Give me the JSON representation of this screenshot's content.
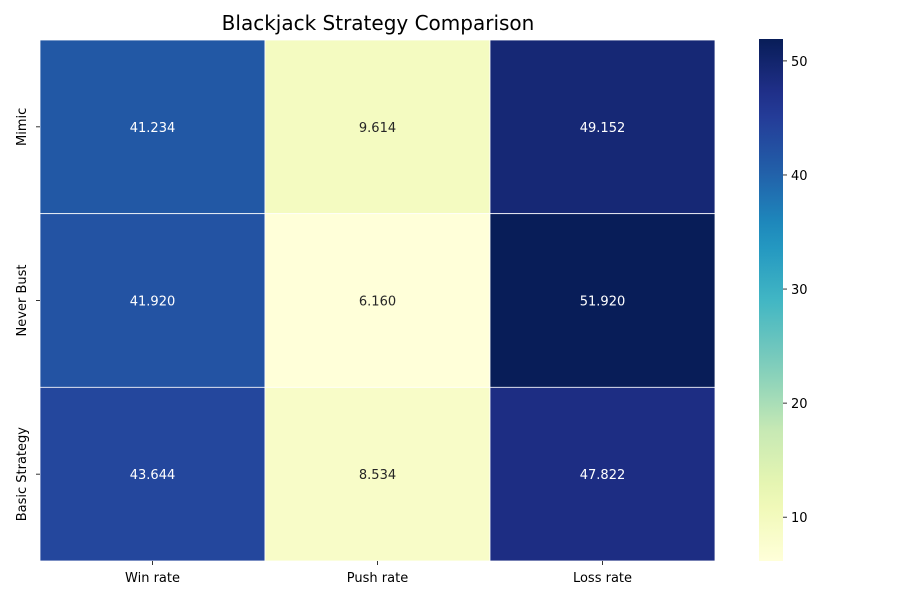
{
  "chart_data": {
    "type": "heatmap",
    "title": "Blackjack Strategy Comparison",
    "xlabel": "",
    "ylabel": "",
    "columns": [
      "Win rate",
      "Push rate",
      "Loss rate"
    ],
    "rows": [
      "Mimic",
      "Never Bust",
      "Basic Strategy"
    ],
    "values": [
      [
        41.234,
        9.614,
        49.152
      ],
      [
        41.92,
        6.16,
        51.92
      ],
      [
        43.644,
        8.534,
        47.822
      ]
    ],
    "value_labels": [
      [
        "41.234",
        "9.614",
        "49.152"
      ],
      [
        "41.920",
        "6.160",
        "51.920"
      ],
      [
        "43.644",
        "8.534",
        "47.822"
      ]
    ],
    "colormap": "YlGnBu",
    "color_range": [
      6.16,
      51.92
    ],
    "colorbar_ticks": [
      10,
      20,
      30,
      40,
      50
    ],
    "grid": false,
    "legend": "colorbar-right"
  }
}
